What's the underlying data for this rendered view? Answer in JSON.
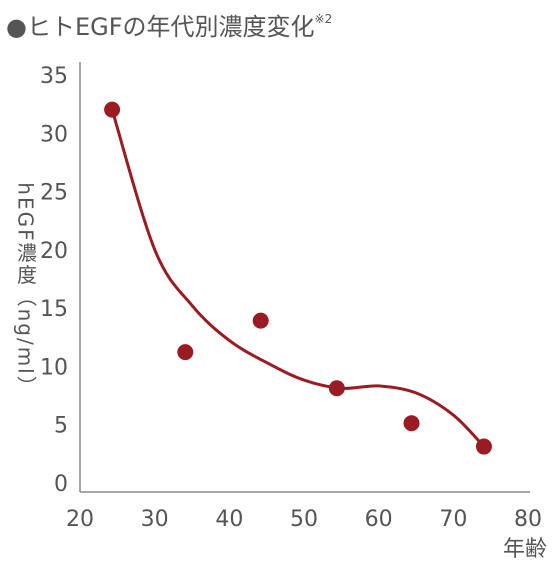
{
  "chart_data": {
    "type": "scatter",
    "title": "●ヒトEGFの年代別濃度変化",
    "title_note": "※2",
    "x_label": "年齢",
    "y_label": "hEGF濃度（ng/ml）",
    "x": [
      24.3,
      34.1,
      44.2,
      54.4,
      64.4,
      74.1
    ],
    "values": [
      32.2,
      11.4,
      14.1,
      8.3,
      5.3,
      3.3
    ],
    "color": "#9b1b22",
    "trend": {
      "x": [
        24.3,
        30,
        35,
        40,
        45,
        50,
        55,
        60,
        65,
        70,
        74.1
      ],
      "values": [
        32.2,
        20.2,
        15.4,
        12.4,
        10.5,
        9.0,
        8.3,
        8.5,
        7.9,
        6.0,
        3.3
      ]
    },
    "xlim": [
      20,
      80
    ],
    "xticks": [
      20,
      30,
      40,
      50,
      60,
      70,
      80
    ],
    "ylim": [
      0,
      35
    ],
    "yticks": [
      0,
      5,
      10,
      15,
      20,
      25,
      30,
      35
    ]
  }
}
